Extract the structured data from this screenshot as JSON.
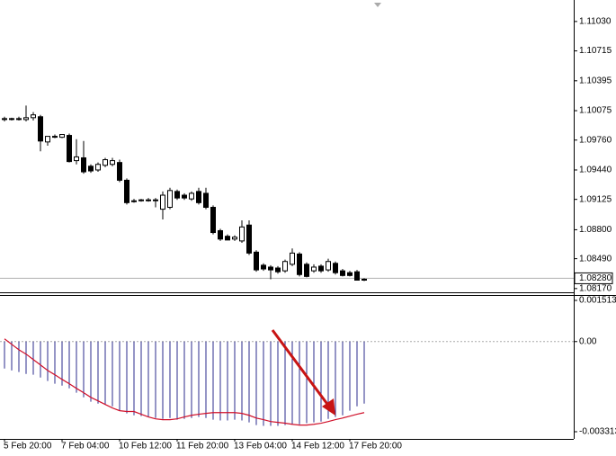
{
  "chart_data": [
    {
      "type": "candlestick",
      "open": [
        1.0998,
        1.0999,
        1.0999,
        1.0998,
        1.1,
        1.1001,
        1.0974,
        1.098,
        1.0979,
        1.0981,
        1.0954,
        1.0957,
        1.0948,
        1.0944,
        1.0949,
        1.095,
        1.0952,
        1.0933,
        1.0911,
        1.0911,
        1.0912,
        1.0912,
        1.0902,
        1.0904,
        1.0921,
        1.0917,
        1.0913,
        1.0921,
        1.0919,
        1.0904,
        1.0879,
        1.0873,
        1.087,
        1.0868,
        1.0885,
        1.0856,
        1.0842,
        1.084,
        1.0839,
        1.0836,
        1.0843,
        1.0854,
        1.0843,
        1.0836,
        1.0841,
        1.0837,
        1.0844,
        1.0836,
        1.0834,
        1.0835,
        1.0827
      ],
      "high": [
        1.1001,
        1.1,
        1.1001,
        1.1013,
        1.1006,
        1.1003,
        1.098,
        1.0982,
        1.0982,
        1.0983,
        1.0977,
        1.0975,
        1.095,
        1.0952,
        1.0957,
        1.0957,
        1.0955,
        1.0935,
        1.0913,
        1.0913,
        1.0914,
        1.0914,
        1.0921,
        1.0925,
        1.0923,
        1.0919,
        1.0921,
        1.0925,
        1.0925,
        1.0906,
        1.0881,
        1.0875,
        1.0874,
        1.089,
        1.089,
        1.0858,
        1.0844,
        1.0842,
        1.0841,
        1.0848,
        1.086,
        1.0856,
        1.0845,
        1.0843,
        1.0843,
        1.0849,
        1.0846,
        1.0838,
        1.0836,
        1.0837,
        1.0828
      ],
      "low": [
        1.0996,
        1.0997,
        1.0997,
        1.0996,
        1.0997,
        1.0964,
        1.097,
        1.0978,
        1.0978,
        1.0952,
        1.095,
        1.094,
        1.0941,
        1.0942,
        1.0947,
        1.0948,
        1.0931,
        1.0907,
        1.0909,
        1.091,
        1.091,
        1.0904,
        1.0891,
        1.0902,
        1.0912,
        1.0912,
        1.0911,
        1.0907,
        1.0902,
        1.0875,
        1.0868,
        1.0869,
        1.0868,
        1.0866,
        1.0853,
        1.0835,
        1.0836,
        1.0827,
        1.0833,
        1.0834,
        1.0841,
        1.083,
        1.0829,
        1.0834,
        1.0834,
        1.0835,
        1.0832,
        1.083,
        1.083,
        1.0826,
        1.0825
      ],
      "close": [
        1.0999,
        1.0999,
        1.0998,
        1.1,
        1.1003,
        1.0975,
        1.098,
        1.098,
        1.0982,
        1.0953,
        1.0958,
        1.0942,
        1.0943,
        1.095,
        1.0955,
        1.0954,
        1.0933,
        1.0909,
        1.0911,
        1.0912,
        1.0912,
        1.0912,
        1.0917,
        1.0922,
        1.0914,
        1.0914,
        1.0919,
        1.0909,
        1.0904,
        1.0877,
        1.087,
        1.0869,
        1.0872,
        1.0883,
        1.0855,
        1.0837,
        1.0838,
        1.0837,
        1.0835,
        1.0846,
        1.0855,
        1.0832,
        1.083,
        1.084,
        1.0836,
        1.0846,
        1.0834,
        1.0831,
        1.0831,
        1.0826,
        1.0826
      ],
      "ylim": [
        1.0813,
        1.1126
      ],
      "yticks": [
        {
          "value": 1.1103,
          "label": "1.11030"
        },
        {
          "value": 1.10715,
          "label": "1.10715"
        },
        {
          "value": 1.10395,
          "label": "1.10395"
        },
        {
          "value": 1.10075,
          "label": "1.10075"
        },
        {
          "value": 1.0976,
          "label": "1.09760"
        },
        {
          "value": 1.0944,
          "label": "1.09440"
        },
        {
          "value": 1.09125,
          "label": "1.09125"
        },
        {
          "value": 1.088,
          "label": "1.08800"
        },
        {
          "value": 1.0849,
          "label": "1.08490"
        },
        {
          "value": 1.0817,
          "label": "1.08170"
        }
      ],
      "current_price": {
        "value": 1.0828,
        "label": "1.08280"
      },
      "up_color": "#ffffff",
      "down_color": "#000000"
    },
    {
      "type": "macd",
      "categories": [
        "5 Feb 20:00",
        null,
        null,
        null,
        null,
        null,
        null,
        null,
        "7 Feb 04:00",
        null,
        null,
        null,
        null,
        null,
        null,
        null,
        "10 Feb 12:00",
        null,
        null,
        null,
        null,
        null,
        null,
        null,
        "11 Feb 20:00",
        null,
        null,
        null,
        null,
        null,
        null,
        null,
        "13 Feb 04:00",
        null,
        null,
        null,
        null,
        null,
        null,
        null,
        "14 Feb 12:00",
        null,
        null,
        null,
        null,
        null,
        null,
        null,
        "17 Feb 20:00",
        null,
        null
      ],
      "histogram": {
        "color": "#2b2b8c",
        "values": [
          -0.00099,
          -0.00106,
          -0.00112,
          -0.00119,
          -0.00122,
          -0.00132,
          -0.00145,
          -0.00155,
          -0.00162,
          -0.00172,
          -0.00188,
          -0.00205,
          -0.00221,
          -0.00228,
          -0.00231,
          -0.00238,
          -0.00254,
          -0.00264,
          -0.00271,
          -0.00274,
          -0.00277,
          -0.00281,
          -0.00284,
          -0.00281,
          -0.00287,
          -0.00284,
          -0.00281,
          -0.00277,
          -0.00281,
          -0.00287,
          -0.0029,
          -0.0029,
          -0.00287,
          -0.0029,
          -0.00297,
          -0.00307,
          -0.0031,
          -0.0031,
          -0.0031,
          -0.00307,
          -0.00304,
          -0.00304,
          -0.003,
          -0.00297,
          -0.00294,
          -0.00284,
          -0.00277,
          -0.00271,
          -0.00254,
          -0.00238,
          -0.00228
        ]
      },
      "signal": {
        "color": "#d0102a",
        "values": [
          0.0001,
          -0.0001,
          -0.0003,
          -0.00046,
          -0.00066,
          -0.00086,
          -0.00106,
          -0.00122,
          -0.00139,
          -0.00155,
          -0.00172,
          -0.00188,
          -0.00205,
          -0.00218,
          -0.00231,
          -0.00244,
          -0.00254,
          -0.00257,
          -0.00257,
          -0.00267,
          -0.00277,
          -0.00284,
          -0.00287,
          -0.00287,
          -0.00284,
          -0.00277,
          -0.00271,
          -0.00267,
          -0.00264,
          -0.00261,
          -0.00261,
          -0.00261,
          -0.00261,
          -0.00264,
          -0.00271,
          -0.00281,
          -0.00287,
          -0.00294,
          -0.00297,
          -0.003,
          -0.00304,
          -0.00307,
          -0.00307,
          -0.00304,
          -0.003,
          -0.00294,
          -0.00287,
          -0.00281,
          -0.00274,
          -0.00267,
          -0.00261
        ]
      },
      "ylim": [
        -0.003313,
        0.001513
      ],
      "yticks": [
        0.001513,
        {
          "value": 0,
          "label": "0.00"
        },
        -0.003313
      ]
    }
  ]
}
